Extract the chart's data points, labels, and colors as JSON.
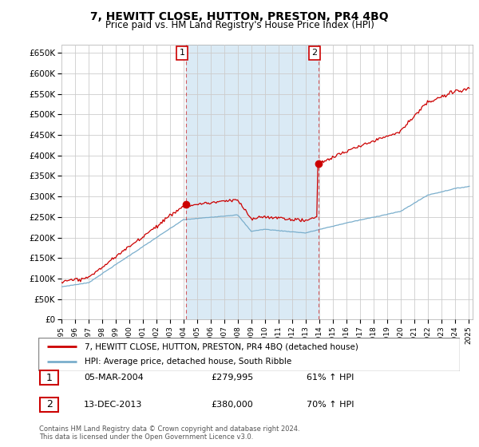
{
  "title": "7, HEWITT CLOSE, HUTTON, PRESTON, PR4 4BQ",
  "subtitle": "Price paid vs. HM Land Registry's House Price Index (HPI)",
  "ylim": [
    0,
    670000
  ],
  "yticks": [
    0,
    50000,
    100000,
    150000,
    200000,
    250000,
    300000,
    350000,
    400000,
    450000,
    500000,
    550000,
    600000,
    650000
  ],
  "sale1_year": 2004.2,
  "sale1_price": 279995,
  "sale2_year": 2013.95,
  "sale2_price": 380000,
  "legend_red": "7, HEWITT CLOSE, HUTTON, PRESTON, PR4 4BQ (detached house)",
  "legend_blue": "HPI: Average price, detached house, South Ribble",
  "table_rows": [
    {
      "num": "1",
      "date": "05-MAR-2004",
      "price": "£279,995",
      "hpi": "61% ↑ HPI"
    },
    {
      "num": "2",
      "date": "13-DEC-2013",
      "price": "£380,000",
      "hpi": "70% ↑ HPI"
    }
  ],
  "footnote1": "Contains HM Land Registry data © Crown copyright and database right 2024.",
  "footnote2": "This data is licensed under the Open Government Licence v3.0.",
  "red_color": "#cc0000",
  "blue_color": "#7aaecc",
  "fill_color": "#daeaf5",
  "grid_color": "#cccccc",
  "bg_color": "#daeaf5",
  "white_bg": "#ffffff"
}
